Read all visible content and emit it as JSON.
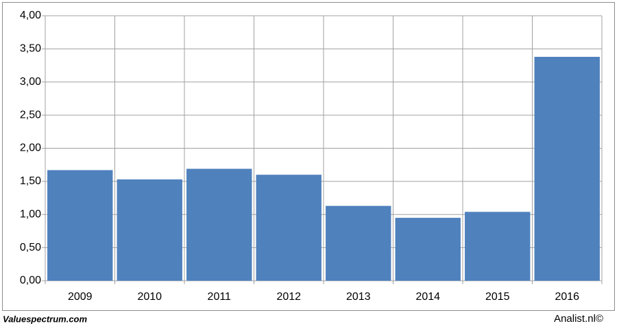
{
  "chart_data": {
    "type": "bar",
    "categories": [
      "2009",
      "2010",
      "2011",
      "2012",
      "2013",
      "2014",
      "2015",
      "2016"
    ],
    "values": [
      1.67,
      1.53,
      1.69,
      1.6,
      1.13,
      0.95,
      1.04,
      3.38
    ],
    "color": "#4f81bd",
    "ylim": [
      0,
      4
    ],
    "yticks": [
      {
        "value": 0,
        "label": "0,00"
      },
      {
        "value": 0.5,
        "label": "0,50"
      },
      {
        "value": 1,
        "label": "1,00"
      },
      {
        "value": 1.5,
        "label": "1,50"
      },
      {
        "value": 2,
        "label": "2,00"
      },
      {
        "value": 2.5,
        "label": "2,50"
      },
      {
        "value": 3,
        "label": "3,00"
      },
      {
        "value": 3.5,
        "label": "3,50"
      },
      {
        "value": 4,
        "label": "4,00"
      }
    ],
    "grid": true
  },
  "footer": {
    "left": "Valuespectrum.com",
    "right": "Analist.nl©"
  }
}
